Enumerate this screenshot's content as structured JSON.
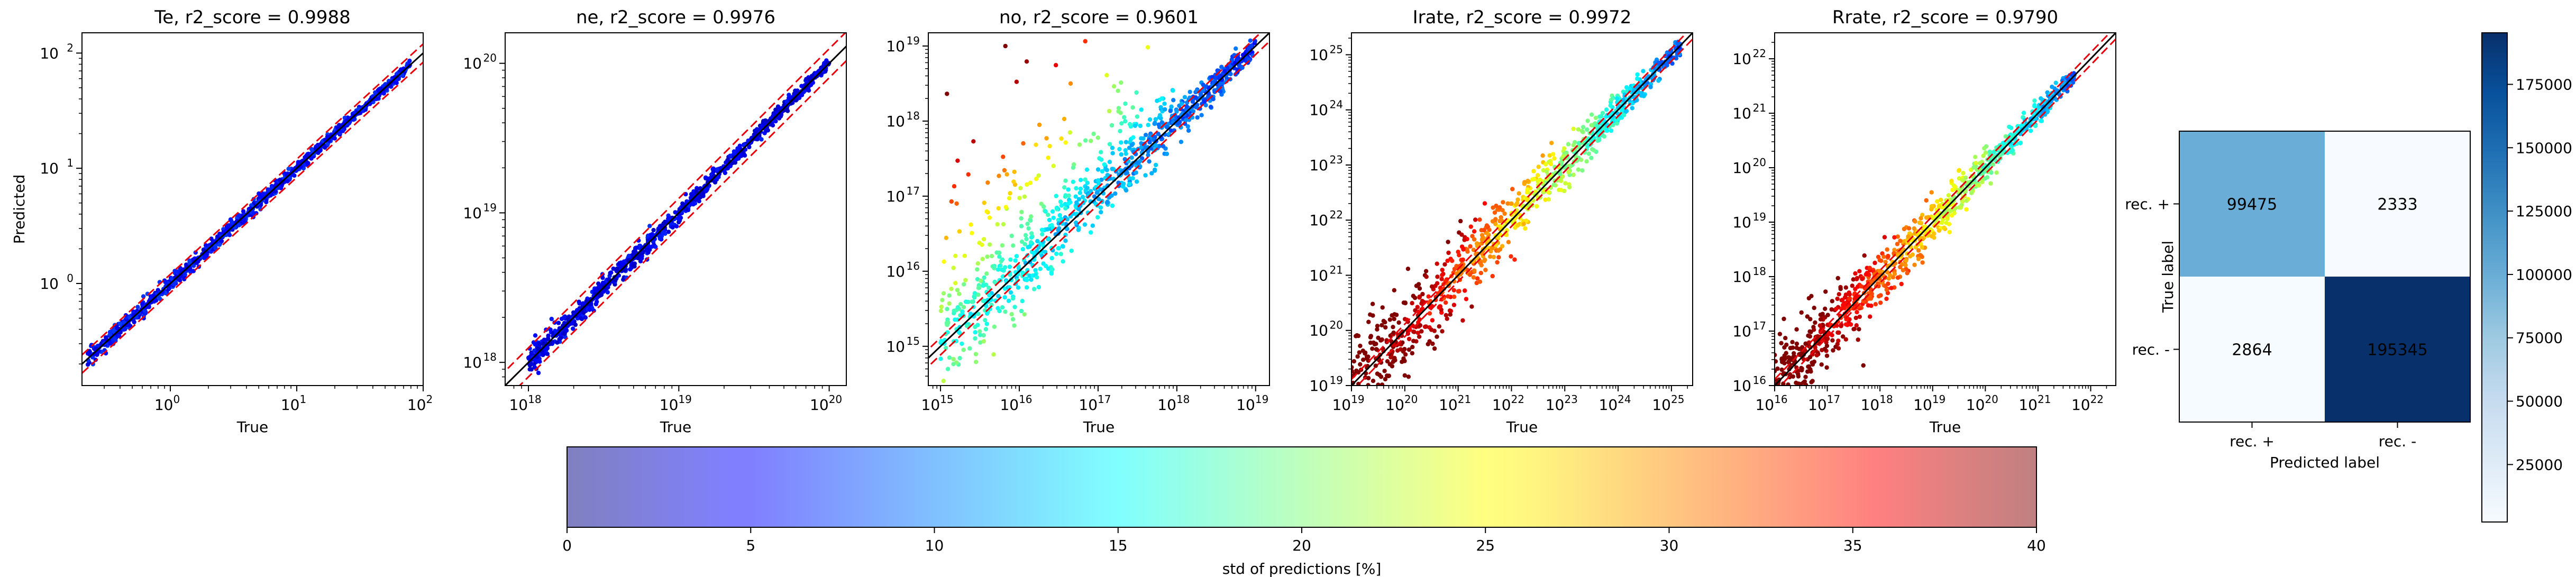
{
  "figure": {
    "scatter_ylabel": "Predicted",
    "scatter_xlabel": "True",
    "colorbar": {
      "label": "std of predictions [%]",
      "min": 0,
      "max": 40,
      "ticks": [
        "0",
        "5",
        "10",
        "15",
        "20",
        "25",
        "30",
        "35",
        "40"
      ],
      "colormap": "jet"
    }
  },
  "chart_data": [
    {
      "type": "scatter",
      "title": "Te, r2_score = 0.9988",
      "xlabel": "True",
      "ylabel": "Predicted",
      "xscale": "log",
      "yscale": "log",
      "xlim": [
        0.2,
        100
      ],
      "ylim": [
        0.13,
        150
      ],
      "xticks": [
        {
          "v": 1,
          "e": "0"
        },
        {
          "v": 10,
          "e": "1"
        },
        {
          "v": 100,
          "e": "2"
        }
      ],
      "yticks": [
        {
          "v": 1,
          "e": "0"
        },
        {
          "v": 10,
          "e": "1"
        },
        {
          "v": 100,
          "e": "2"
        }
      ],
      "data_range": [
        0.22,
        80
      ],
      "dashed_factor": 1.2,
      "spread": 0.03,
      "upper_spread": 0.0,
      "std_profile": [
        3,
        3
      ],
      "reference_lines": [
        "y = x (black)",
        "y = x ± 20% (red dashed)"
      ]
    },
    {
      "type": "scatter",
      "title": "ne, r2_score = 0.9976",
      "xlabel": "True",
      "ylabel": "",
      "xscale": "log",
      "yscale": "log",
      "xlim": [
        7e+17,
        1.3e+20
      ],
      "ylim": [
        7e+17,
        1.6e+20
      ],
      "xticks": [
        {
          "v": 1e+18,
          "e": "18"
        },
        {
          "v": 1e+19,
          "e": "19"
        },
        {
          "v": 1e+20,
          "e": "20"
        }
      ],
      "yticks": [
        {
          "v": 1e+18,
          "e": "18"
        },
        {
          "v": 1e+19,
          "e": "19"
        },
        {
          "v": 1e+20,
          "e": "20"
        }
      ],
      "data_range": [
        1e+18,
        1e+20
      ],
      "dashed_factor": 1.25,
      "spread": 0.03,
      "upper_spread": 0.0,
      "std_profile": [
        2,
        2
      ],
      "reference_lines": [
        "y = x (black)",
        "y = x ± 25% (red dashed)"
      ]
    },
    {
      "type": "scatter",
      "title": "no, r2_score = 0.9601",
      "xlabel": "True",
      "ylabel": "",
      "xscale": "log",
      "yscale": "log",
      "xlim": [
        700000000000000.0,
        1.5e+19
      ],
      "ylim": [
        300000000000000.0,
        1.5e+19
      ],
      "xticks": [
        {
          "v": 1000000000000000.0,
          "e": "15"
        },
        {
          "v": 1e+16,
          "e": "16"
        },
        {
          "v": 1e+17,
          "e": "17"
        },
        {
          "v": 1e+18,
          "e": "18"
        },
        {
          "v": 1e+19,
          "e": "19"
        }
      ],
      "yticks": [
        {
          "v": 1000000000000000.0,
          "e": "15"
        },
        {
          "v": 1e+16,
          "e": "16"
        },
        {
          "v": 1e+17,
          "e": "17"
        },
        {
          "v": 1e+18,
          "e": "18"
        },
        {
          "v": 1e+19,
          "e": "19"
        }
      ],
      "data_range": [
        1000000000000000.0,
        1e+19
      ],
      "dashed_factor": 1.3,
      "spread": 0.35,
      "upper_spread": 1.4,
      "std_profile": [
        14,
        4
      ],
      "reference_lines": [
        "y = x (black)",
        "y = x ± 30% (red dashed)"
      ]
    },
    {
      "type": "scatter",
      "title": "Irate, r2_score = 0.9972",
      "xlabel": "True",
      "ylabel": "",
      "xscale": "log",
      "yscale": "log",
      "xlim": [
        1e+19,
        2.5e+25
      ],
      "ylim": [
        1e+19,
        2.5e+25
      ],
      "xticks": [
        {
          "v": 1e+19,
          "e": "19"
        },
        {
          "v": 1e+20,
          "e": "20"
        },
        {
          "v": 1e+21,
          "e": "21"
        },
        {
          "v": 1e+22,
          "e": "22"
        },
        {
          "v": 1e+23,
          "e": "23"
        },
        {
          "v": 1e+24,
          "e": "24"
        },
        {
          "v": 1e+25,
          "e": "25"
        }
      ],
      "yticks": [
        {
          "v": 1e+19,
          "e": "19"
        },
        {
          "v": 1e+20,
          "e": "20"
        },
        {
          "v": 1e+21,
          "e": "21"
        },
        {
          "v": 1e+22,
          "e": "22"
        },
        {
          "v": 1e+23,
          "e": "23"
        },
        {
          "v": 1e+24,
          "e": "24"
        },
        {
          "v": 1e+25,
          "e": "25"
        }
      ],
      "data_range": [
        1e+19,
        1.5e+25
      ],
      "dashed_factor": 1.3,
      "spread": 0.45,
      "upper_spread": 0.0,
      "std_profile": [
        40,
        5
      ],
      "reference_lines": [
        "y = x (black)",
        "y = x ± 30% (red dashed)"
      ]
    },
    {
      "type": "scatter",
      "title": "Rrate, r2_score = 0.9790",
      "xlabel": "True",
      "ylabel": "",
      "xscale": "log",
      "yscale": "log",
      "xlim": [
        1e+16,
        3e+22
      ],
      "ylim": [
        1e+16,
        3e+22
      ],
      "xticks": [
        {
          "v": 1e+16,
          "e": "16"
        },
        {
          "v": 1e+17,
          "e": "17"
        },
        {
          "v": 1e+18,
          "e": "18"
        },
        {
          "v": 1e+19,
          "e": "19"
        },
        {
          "v": 1e+20,
          "e": "20"
        },
        {
          "v": 1e+21,
          "e": "21"
        },
        {
          "v": 1e+22,
          "e": "22"
        }
      ],
      "yticks": [
        {
          "v": 1e+16,
          "e": "16"
        },
        {
          "v": 1e+17,
          "e": "17"
        },
        {
          "v": 1e+18,
          "e": "18"
        },
        {
          "v": 1e+19,
          "e": "19"
        },
        {
          "v": 1e+20,
          "e": "20"
        },
        {
          "v": 1e+21,
          "e": "21"
        },
        {
          "v": 1e+22,
          "e": "22"
        }
      ],
      "data_range": [
        1e+16,
        5e+21
      ],
      "dashed_factor": 1.3,
      "spread": 0.35,
      "upper_spread": 0.0,
      "std_profile": [
        40,
        6
      ],
      "reference_lines": [
        "y = x (black)",
        "y = x ± 30% (red dashed)"
      ]
    },
    {
      "type": "heatmap",
      "title": "",
      "xlabel": "Predicted label",
      "ylabel": "True label",
      "x_categories": [
        "rec. +",
        "rec. -"
      ],
      "y_categories": [
        "rec. +",
        "rec. -"
      ],
      "values": [
        [
          99475,
          2333
        ],
        [
          2864,
          195345
        ]
      ],
      "colormap": "Blues",
      "colorbar_ticks": [
        25000,
        50000,
        75000,
        100000,
        125000,
        150000,
        175000
      ],
      "colorbar_range": [
        2333,
        195345
      ]
    }
  ]
}
